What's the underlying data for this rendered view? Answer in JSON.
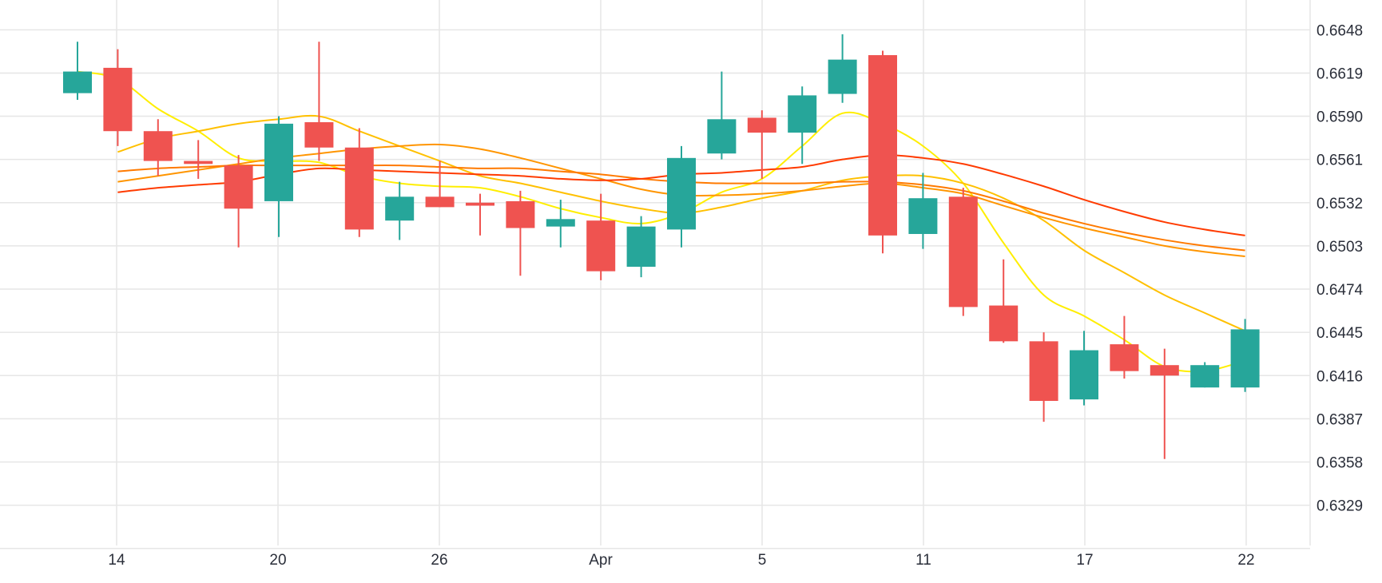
{
  "chart_data": {
    "type": "candlestick",
    "x_tick_labels": [
      "14",
      "20",
      "26",
      "Apr",
      "5",
      "11",
      "17",
      "22"
    ],
    "y_tick_labels": [
      "0.6648",
      "0.6619",
      "0.6590",
      "0.6561",
      "0.6532",
      "0.6503",
      "0.6474",
      "0.6445",
      "0.6416",
      "0.6387",
      "0.6358",
      "0.6329"
    ],
    "ylim": [
      0.6302,
      0.6668
    ],
    "grid": true,
    "colors": {
      "up": "#26a69a",
      "down": "#ef5350",
      "grid": "#e6e6e6",
      "ma_colors": [
        "#ffee00",
        "#ffc000",
        "#ff9500",
        "#ff7a00",
        "#ff3b00"
      ]
    },
    "candles": [
      {
        "o": 0.66055,
        "h": 0.664,
        "l": 0.6601,
        "c": 0.662
      },
      {
        "o": 0.66225,
        "h": 0.6635,
        "l": 0.657,
        "c": 0.658
      },
      {
        "o": 0.658,
        "h": 0.6588,
        "l": 0.655,
        "c": 0.656
      },
      {
        "o": 0.656,
        "h": 0.6574,
        "l": 0.6548,
        "c": 0.6558
      },
      {
        "o": 0.6557,
        "h": 0.6564,
        "l": 0.6502,
        "c": 0.6528
      },
      {
        "o": 0.6533,
        "h": 0.659,
        "l": 0.6509,
        "c": 0.6585
      },
      {
        "o": 0.6586,
        "h": 0.664,
        "l": 0.656,
        "c": 0.6569
      },
      {
        "o": 0.6569,
        "h": 0.6582,
        "l": 0.6509,
        "c": 0.6514
      },
      {
        "o": 0.652,
        "h": 0.6546,
        "l": 0.6507,
        "c": 0.6536
      },
      {
        "o": 0.6536,
        "h": 0.656,
        "l": 0.6529,
        "c": 0.6529
      },
      {
        "o": 0.6532,
        "h": 0.6538,
        "l": 0.651,
        "c": 0.653
      },
      {
        "o": 0.6533,
        "h": 0.654,
        "l": 0.6483,
        "c": 0.6515
      },
      {
        "o": 0.6516,
        "h": 0.6534,
        "l": 0.6502,
        "c": 0.6521
      },
      {
        "o": 0.652,
        "h": 0.6538,
        "l": 0.648,
        "c": 0.6486
      },
      {
        "o": 0.6489,
        "h": 0.6523,
        "l": 0.6482,
        "c": 0.6516
      },
      {
        "o": 0.6514,
        "h": 0.657,
        "l": 0.6502,
        "c": 0.6562
      },
      {
        "o": 0.6565,
        "h": 0.662,
        "l": 0.6561,
        "c": 0.6588
      },
      {
        "o": 0.6589,
        "h": 0.6594,
        "l": 0.6548,
        "c": 0.6579
      },
      {
        "o": 0.6579,
        "h": 0.661,
        "l": 0.6558,
        "c": 0.6604
      },
      {
        "o": 0.6605,
        "h": 0.6645,
        "l": 0.6599,
        "c": 0.6628
      },
      {
        "o": 0.6631,
        "h": 0.6634,
        "l": 0.6498,
        "c": 0.651
      },
      {
        "o": 0.6511,
        "h": 0.6552,
        "l": 0.6501,
        "c": 0.6535
      },
      {
        "o": 0.6536,
        "h": 0.6542,
        "l": 0.6456,
        "c": 0.6462
      },
      {
        "o": 0.6463,
        "h": 0.6494,
        "l": 0.6438,
        "c": 0.6439
      },
      {
        "o": 0.6439,
        "h": 0.6445,
        "l": 0.6385,
        "c": 0.6399
      },
      {
        "o": 0.64,
        "h": 0.6446,
        "l": 0.6396,
        "c": 0.6433
      },
      {
        "o": 0.6437,
        "h": 0.6456,
        "l": 0.6414,
        "c": 0.6419
      },
      {
        "o": 0.6423,
        "h": 0.6434,
        "l": 0.636,
        "c": 0.6416
      },
      {
        "o": 0.6408,
        "h": 0.6425,
        "l": 0.6408,
        "c": 0.6423
      },
      {
        "o": 0.6408,
        "h": 0.6454,
        "l": 0.6405,
        "c": 0.6447
      }
    ],
    "moving_averages": [
      {
        "values": [
          0.662,
          0.6615,
          0.6595,
          0.658,
          0.6562,
          0.656,
          0.6559,
          0.655,
          0.6545,
          0.6543,
          0.6542,
          0.6536,
          0.6528,
          0.6522,
          0.6518,
          0.6525,
          0.6539,
          0.6548,
          0.657,
          0.6592,
          0.6585,
          0.657,
          0.6545,
          0.6505,
          0.647,
          0.6456,
          0.644,
          0.6422,
          0.6419,
          0.6426
        ]
      },
      {
        "values": [
          null,
          0.6566,
          0.6575,
          0.658,
          0.6585,
          0.6588,
          0.659,
          0.658,
          0.657,
          0.656,
          0.655,
          0.6545,
          0.6539,
          0.6533,
          0.6528,
          0.6525,
          0.6529,
          0.6535,
          0.654,
          0.6547,
          0.655,
          0.655,
          0.6545,
          0.6535,
          0.652,
          0.65,
          0.6485,
          0.647,
          0.6458,
          0.6446
        ]
      },
      {
        "values": [
          null,
          0.6546,
          0.655,
          0.6554,
          0.6558,
          0.6562,
          0.6565,
          0.6568,
          0.657,
          0.6571,
          0.6568,
          0.6562,
          0.6555,
          0.6548,
          0.6541,
          0.6537,
          0.6537,
          0.6538,
          0.654,
          0.6543,
          0.6545,
          0.6542,
          0.6538,
          0.653,
          0.6522,
          0.6515,
          0.6509,
          0.6503,
          0.6499,
          0.6496
        ]
      },
      {
        "values": [
          null,
          0.6553,
          0.6555,
          0.6556,
          0.6557,
          0.6557,
          0.6557,
          0.6557,
          0.6557,
          0.6556,
          0.6555,
          0.6555,
          0.6553,
          0.6551,
          0.6548,
          0.6546,
          0.6545,
          0.6545,
          0.6545,
          0.6546,
          0.6546,
          0.6544,
          0.654,
          0.6533,
          0.6525,
          0.6518,
          0.6512,
          0.6507,
          0.6503,
          0.65
        ]
      },
      {
        "values": [
          null,
          0.6539,
          0.6542,
          0.6544,
          0.6546,
          0.6551,
          0.6555,
          0.6554,
          0.6553,
          0.6552,
          0.6551,
          0.655,
          0.6548,
          0.6547,
          0.6548,
          0.6551,
          0.6552,
          0.6554,
          0.6556,
          0.6561,
          0.6564,
          0.6562,
          0.6558,
          0.6551,
          0.6543,
          0.6534,
          0.6526,
          0.6519,
          0.6514,
          0.651
        ]
      }
    ]
  }
}
